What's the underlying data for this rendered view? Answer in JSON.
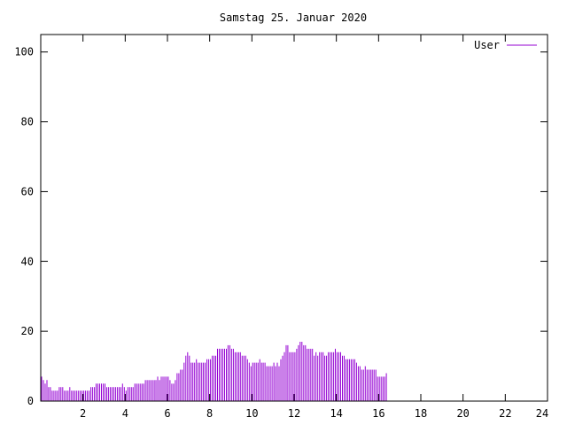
{
  "chart_data": {
    "type": "bar",
    "title": "Samstag 25. Januar 2020",
    "xlabel": "",
    "ylabel": "",
    "xlim": [
      0,
      24
    ],
    "ylim": [
      0,
      105
    ],
    "x_ticks": [
      2,
      4,
      6,
      8,
      10,
      12,
      14,
      16,
      18,
      20,
      22,
      24
    ],
    "y_ticks": [
      0,
      20,
      40,
      60,
      80,
      100
    ],
    "x_tick_labels": [
      "2",
      "4",
      "6",
      "8",
      "10",
      "12",
      "14",
      "16",
      "18",
      "20",
      "22",
      "24"
    ],
    "y_tick_labels": [
      "0",
      "20",
      "40",
      "60",
      "80",
      "100"
    ],
    "grid": false,
    "legend_position": "top-right",
    "series": [
      {
        "name": "User",
        "color": "#9400d3",
        "x_start": 0,
        "x_step": 0.0833,
        "values": [
          7,
          6,
          5,
          6,
          4,
          4,
          3,
          3,
          3,
          3,
          4,
          4,
          4,
          3,
          3,
          3,
          4,
          3,
          3,
          3,
          3,
          3,
          3,
          3,
          3,
          3,
          3,
          3,
          4,
          4,
          4,
          5,
          5,
          5,
          5,
          5,
          5,
          4,
          4,
          4,
          4,
          4,
          4,
          4,
          4,
          4,
          5,
          4,
          3,
          4,
          4,
          4,
          4,
          5,
          5,
          5,
          5,
          5,
          5,
          6,
          6,
          6,
          6,
          6,
          6,
          6,
          7,
          6,
          7,
          7,
          7,
          7,
          7,
          6,
          5,
          5,
          6,
          8,
          8,
          9,
          9,
          11,
          13,
          14,
          13,
          11,
          11,
          11,
          12,
          11,
          11,
          11,
          11,
          11,
          12,
          12,
          12,
          13,
          13,
          13,
          15,
          15,
          15,
          15,
          15,
          15,
          16,
          16,
          15,
          15,
          14,
          14,
          14,
          14,
          13,
          13,
          13,
          12,
          11,
          10,
          11,
          11,
          11,
          11,
          12,
          11,
          11,
          11,
          10,
          10,
          10,
          10,
          11,
          10,
          11,
          10,
          12,
          13,
          14,
          16,
          16,
          14,
          14,
          14,
          14,
          15,
          16,
          17,
          17,
          16,
          16,
          15,
          15,
          15,
          15,
          13,
          14,
          13,
          14,
          14,
          14,
          13,
          13,
          14,
          14,
          14,
          14,
          15,
          14,
          14,
          14,
          13,
          13,
          12,
          12,
          12,
          12,
          12,
          12,
          11,
          10,
          10,
          9,
          9,
          10,
          9,
          9,
          9,
          9,
          9,
          9,
          7,
          7,
          7,
          7,
          7,
          8
        ]
      }
    ]
  }
}
